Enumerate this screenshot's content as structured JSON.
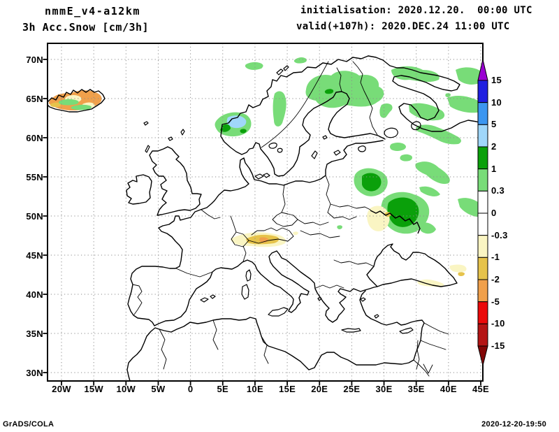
{
  "header": {
    "model_title": "nmmE_v4-a12km",
    "field_title": "3h Acc.Snow [cm/3h]",
    "init_label": "initialisation: 2020.12.20.  00:00 UTC",
    "valid_label": "valid(+107h): 2020.DEC.24 11:00 UTC"
  },
  "footer": {
    "credit": "GrADS/COLA",
    "timestamp": "2020-12-20-19:50"
  },
  "chart_data": {
    "type": "heatmap",
    "subtype": "filled-contour-geographic-map",
    "title": "3h Acc.Snow [cm/3h]",
    "model": "nmmE_v4-a12km",
    "initialisation": "2020.12.20. 00:00 UTC",
    "valid": "2020.DEC.24 11:00 UTC (+107h)",
    "region": "Europe",
    "projection": "latlon",
    "lon_range_deg": [
      -22.2,
      45
    ],
    "lat_range_deg": [
      28.9,
      71.3
    ],
    "grid": "dotted",
    "lon_ticks": [
      "20W",
      "15W",
      "10W",
      "5W",
      "0",
      "5E",
      "10E",
      "15E",
      "20E",
      "25E",
      "30E",
      "35E",
      "40E",
      "45E"
    ],
    "lat_ticks": [
      "70N",
      "65N",
      "60N",
      "55N",
      "50N",
      "45N",
      "40N",
      "35N",
      "30N"
    ],
    "colorbar": {
      "position": "right",
      "units": "cm/3h",
      "levels_top_to_bottom": [
        "15",
        "10",
        "5",
        "2",
        "1",
        "0.3",
        "0",
        "-0.3",
        "-1",
        "-2",
        "-5",
        "-10",
        "-15"
      ],
      "segment_colors_top_to_bottom": [
        "#2020e0",
        "#3c96f0",
        "#a0d7fa",
        "#0aa00a",
        "#78dc78",
        "#ffffff",
        "#ffffff",
        "#faf5c3",
        "#e6c34b",
        "#f0a04b",
        "#eb0a0a",
        "#b41414"
      ],
      "over_arrow_color": "#9a00d2",
      "under_arrow_color": "#820505"
    },
    "shaded_features": [
      {
        "region": "Iceland coast (~65N, 22-15W)",
        "value_cm_3h": "-5 to -2 (orange) with -1 to -0.3 and 0.3 to 1 bands"
      },
      {
        "region": "Southern Norway (~61N, 6-8E)",
        "value_cm_3h": "2 to 5 (light blue) with 1 to 2 edge"
      },
      {
        "region": "Northern Sweden / Finland (64-68N, 17-28E)",
        "value_cm_3h": "0.3 to 1"
      },
      {
        "region": "Kola peninsula / White Sea (65-69N, 30-42E)",
        "value_cm_3h": "0.3 to 1"
      },
      {
        "region": "NW Russia near Ladoga (59-61N, 30-38E)",
        "value_cm_3h": "0.3 to 1"
      },
      {
        "region": "Belarus / W Russia (~55N, 27-30E)",
        "value_cm_3h": "1 to 2 core in 0.3 to 1 halo"
      },
      {
        "region": "E Ukraine / W Russia (48-53N, 31-37E)",
        "value_cm_3h": "1 to 2 core in 0.3 to 1 halo"
      },
      {
        "region": "Kyiv area (~50N, 29-31E)",
        "value_cm_3h": "-1 to -0.3"
      },
      {
        "region": "Alps (46-47N, 7-13E)",
        "value_cm_3h": "-2 to -0.3 with small -5 to -2 spots"
      },
      {
        "region": "NE Turkey (~41N, 35-39E)",
        "value_cm_3h": "-1 to -0.3"
      },
      {
        "region": "Caucasus / E edge (~43N, 43-45E)",
        "value_cm_3h": "-2 to -0.3"
      }
    ]
  }
}
